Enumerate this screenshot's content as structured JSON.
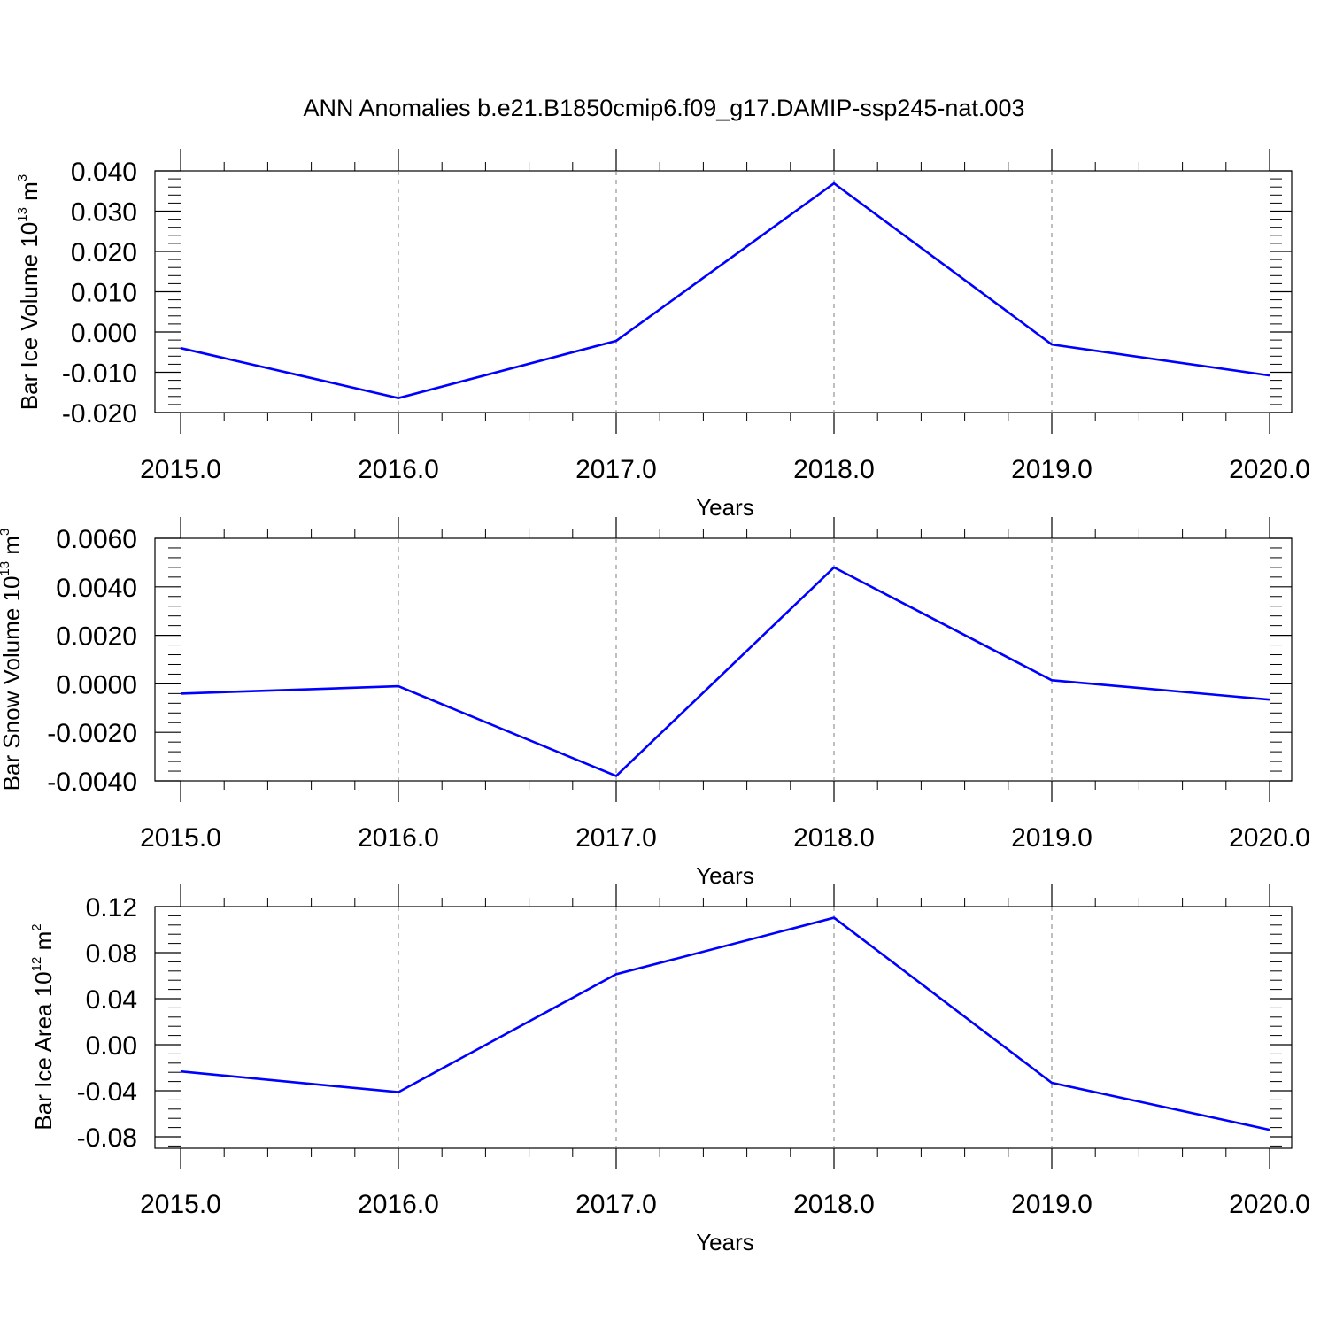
{
  "figure": {
    "title": "ANN Anomalies b.e21.B1850cmip6.f09_g17.DAMIP-ssp245-nat.003"
  },
  "colors": {
    "series": "#0000ff",
    "axis": "#000000",
    "grid": "#7f7f7f"
  },
  "chart_data": [
    {
      "type": "line",
      "title": "",
      "xlabel": "Years",
      "ylabel": {
        "text": "Bar Ice Volume 10",
        "sup": "13",
        "unit": " m",
        "unit_sup": "3"
      },
      "x": [
        2015,
        2016,
        2017,
        2018,
        2019,
        2020
      ],
      "xticks": [
        2015,
        2016,
        2017,
        2018,
        2019,
        2020
      ],
      "xtick_labels": [
        "2015.0",
        "2016.0",
        "2017.0",
        "2018.0",
        "2019.0",
        "2020.0"
      ],
      "xlim": [
        2015,
        2020
      ],
      "ylim": [
        -0.02,
        0.04
      ],
      "yticks": [
        -0.02,
        -0.01,
        0.0,
        0.01,
        0.02,
        0.03,
        0.04
      ],
      "ytick_labels": [
        "-0.020",
        "-0.010",
        "0.000",
        "0.010",
        "0.020",
        "0.030",
        "0.040"
      ],
      "y_minor_step": 0.002,
      "series": [
        {
          "values": [
            -0.004,
            -0.0164,
            -0.0022,
            0.0369,
            -0.0031,
            -0.0108
          ]
        }
      ],
      "grid": "vertical dashed at major x ticks"
    },
    {
      "type": "line",
      "title": "",
      "xlabel": "Years",
      "ylabel": {
        "text": "Bar Snow Volume 10",
        "sup": "13",
        "unit": " m",
        "unit_sup": "3"
      },
      "x": [
        2015,
        2016,
        2017,
        2018,
        2019,
        2020
      ],
      "xticks": [
        2015,
        2016,
        2017,
        2018,
        2019,
        2020
      ],
      "xtick_labels": [
        "2015.0",
        "2016.0",
        "2017.0",
        "2018.0",
        "2019.0",
        "2020.0"
      ],
      "xlim": [
        2015,
        2020
      ],
      "ylim": [
        -0.004,
        0.006
      ],
      "yticks": [
        -0.004,
        -0.002,
        0.0,
        0.002,
        0.004,
        0.006
      ],
      "ytick_labels": [
        "-0.0040",
        "-0.0020",
        "0.0000",
        "0.0020",
        "0.0040",
        "0.0060"
      ],
      "y_minor_step": 0.0004,
      "series": [
        {
          "values": [
            -0.0004,
            -0.0001,
            -0.0038,
            0.0048,
            0.00015,
            -0.00065
          ]
        }
      ],
      "grid": "vertical dashed at major x ticks"
    },
    {
      "type": "line",
      "title": "",
      "xlabel": "Years",
      "ylabel": {
        "text": "Bar Ice Area 10",
        "sup": "12",
        "unit": " m",
        "unit_sup": "2"
      },
      "x": [
        2015,
        2016,
        2017,
        2018,
        2019,
        2020
      ],
      "xticks": [
        2015,
        2016,
        2017,
        2018,
        2019,
        2020
      ],
      "xtick_labels": [
        "2015.0",
        "2016.0",
        "2017.0",
        "2018.0",
        "2019.0",
        "2020.0"
      ],
      "xlim": [
        2015,
        2020
      ],
      "ylim": [
        -0.09,
        0.12
      ],
      "yticks": [
        -0.08,
        -0.04,
        0.0,
        0.04,
        0.08,
        0.12
      ],
      "ytick_labels": [
        "-0.08",
        "-0.04",
        "0.00",
        "0.04",
        "0.08",
        "0.12"
      ],
      "y_minor_step": 0.008,
      "series": [
        {
          "values": [
            -0.0232,
            -0.0412,
            0.0612,
            0.1103,
            -0.0331,
            -0.0739
          ]
        }
      ],
      "grid": "vertical dashed at major x ticks"
    }
  ]
}
